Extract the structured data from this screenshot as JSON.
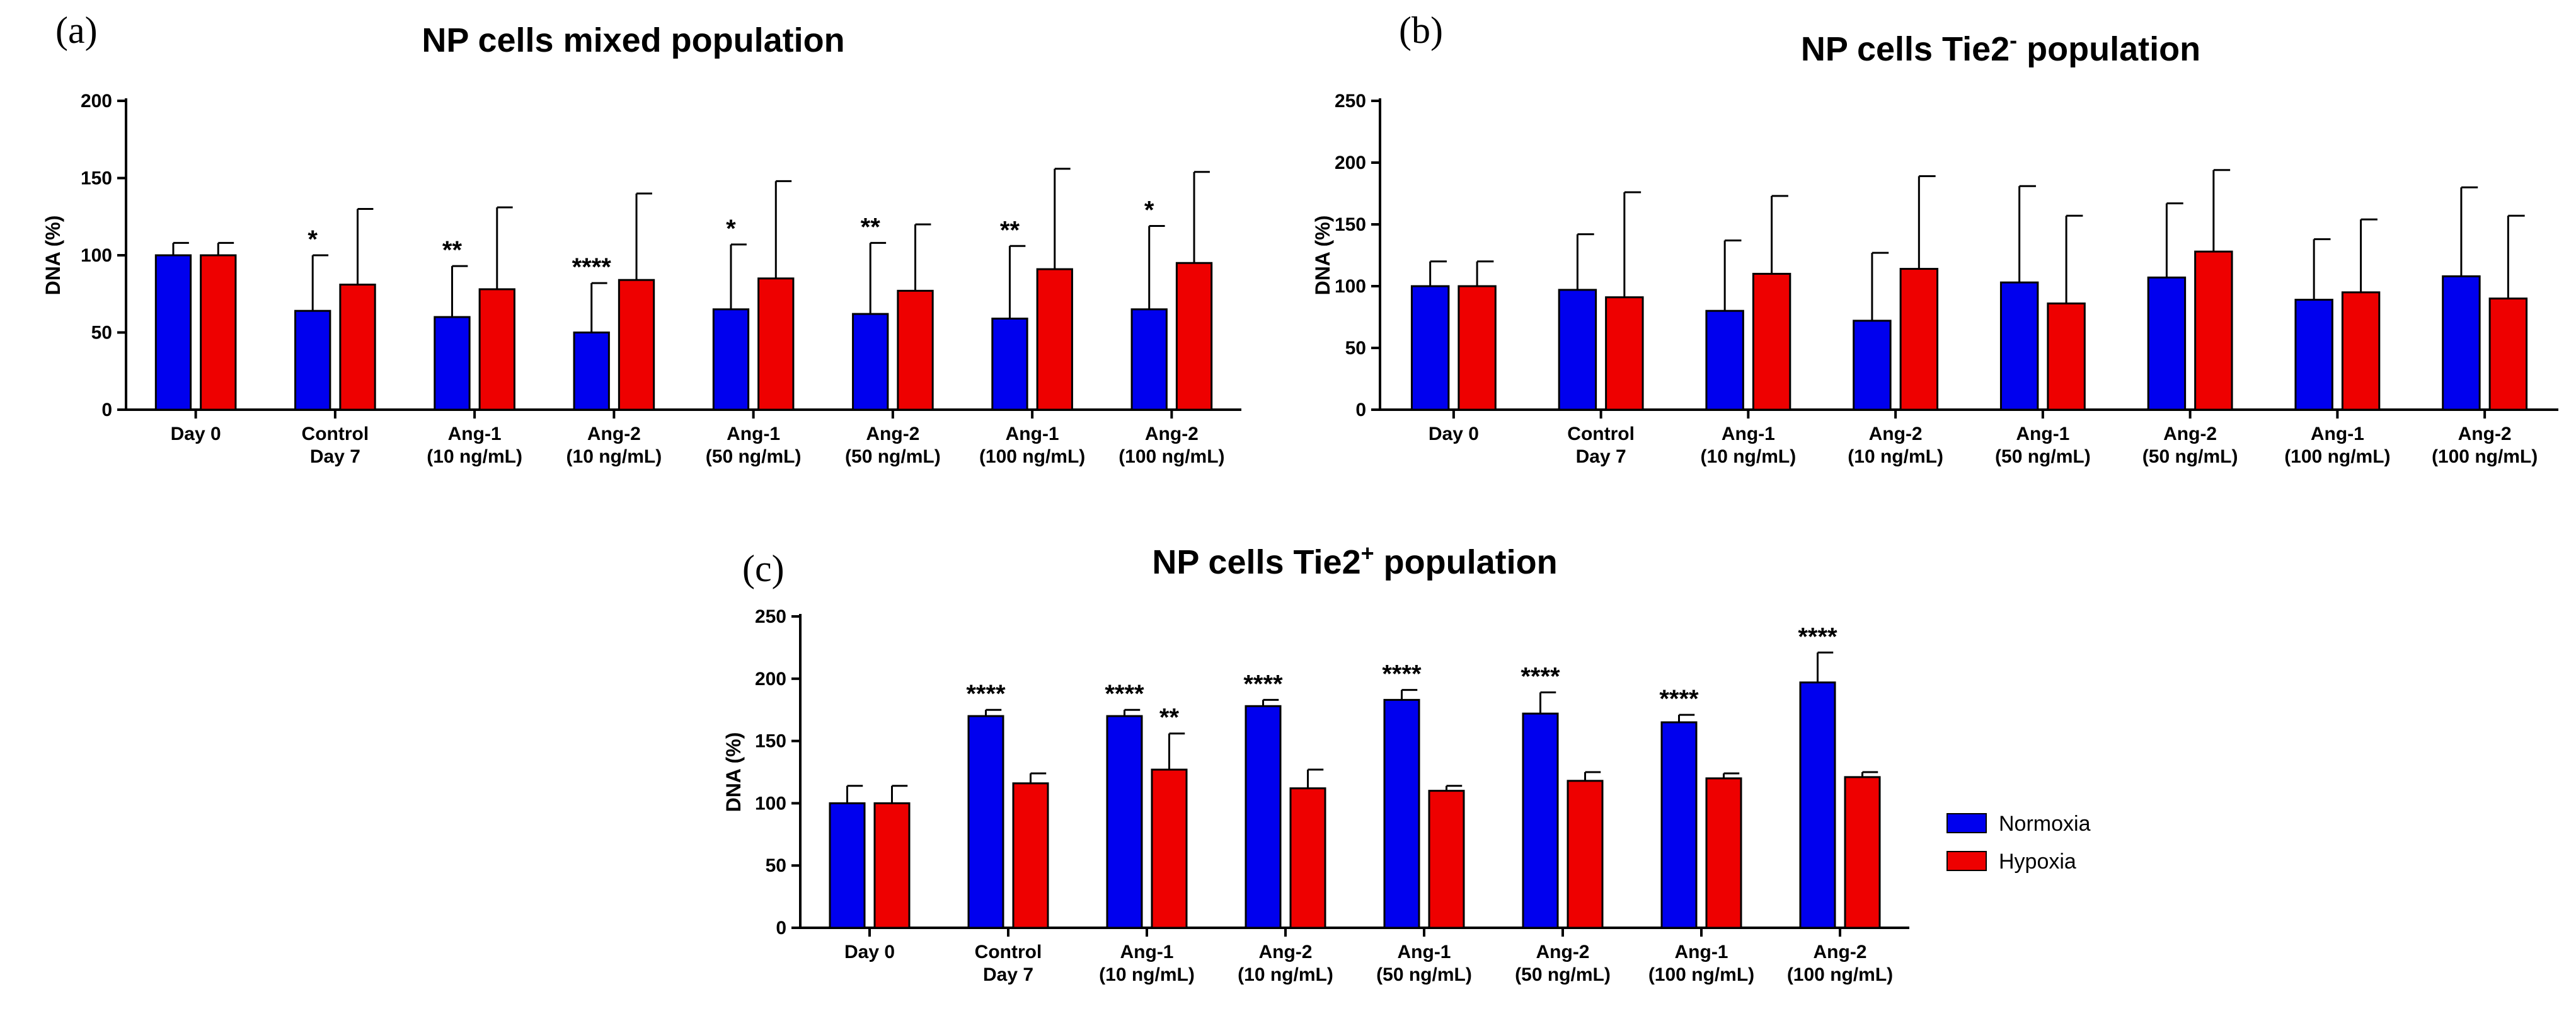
{
  "colors": {
    "normoxia": "#0000ee",
    "hypoxia": "#ee0000",
    "axis": "#000000"
  },
  "legend": {
    "normoxia": "Normoxia",
    "hypoxia": "Hypoxia"
  },
  "chart_data": [
    {
      "panel": "(a)",
      "type": "bar",
      "title": "NP cells mixed population",
      "title_superscript": "",
      "title_suffix": "",
      "ylabel": "DNA (%)",
      "xlabel": "",
      "ylim": [
        0,
        200
      ],
      "yticks": [
        0,
        50,
        100,
        150,
        200
      ],
      "categories": [
        [
          "Day 0"
        ],
        [
          "Control",
          "Day 7"
        ],
        [
          "Ang-1",
          "(10 ng/mL)"
        ],
        [
          "Ang-2",
          "(10 ng/mL)"
        ],
        [
          "Ang-1",
          "(50 ng/mL)"
        ],
        [
          "Ang-2",
          "(50 ng/mL)"
        ],
        [
          "Ang-1",
          "(100 ng/mL)"
        ],
        [
          "Ang-2",
          "(100 ng/mL)"
        ]
      ],
      "series": [
        {
          "name": "Normoxia",
          "values": [
            100,
            64,
            60,
            50,
            65,
            62,
            59,
            65
          ],
          "errors": [
            8,
            36,
            33,
            32,
            42,
            46,
            47,
            54
          ],
          "annotations": [
            "",
            "*",
            "**",
            "****",
            "*",
            "**",
            "**",
            "*"
          ]
        },
        {
          "name": "Hypoxia",
          "values": [
            100,
            81,
            78,
            84,
            85,
            77,
            91,
            95
          ],
          "errors": [
            8,
            49,
            53,
            56,
            63,
            43,
            65,
            59
          ],
          "annotations": [
            "",
            "",
            "",
            "",
            "",
            "",
            "",
            ""
          ]
        }
      ]
    },
    {
      "panel": "(b)",
      "type": "bar",
      "title": "NP cells Tie2",
      "title_superscript": "-",
      "title_suffix": " population",
      "ylabel": "DNA (%)",
      "xlabel": "",
      "ylim": [
        0,
        250
      ],
      "yticks": [
        0,
        50,
        100,
        150,
        200,
        250
      ],
      "categories": [
        [
          "Day 0"
        ],
        [
          "Control",
          "Day 7"
        ],
        [
          "Ang-1",
          "(10 ng/mL)"
        ],
        [
          "Ang-2",
          "(10 ng/mL)"
        ],
        [
          "Ang-1",
          "(50 ng/mL)"
        ],
        [
          "Ang-2",
          "(50 ng/mL)"
        ],
        [
          "Ang-1",
          "(100 ng/mL)"
        ],
        [
          "Ang-2",
          "(100 ng/mL)"
        ]
      ],
      "series": [
        {
          "name": "Normoxia",
          "values": [
            100,
            97,
            80,
            72,
            103,
            107,
            89,
            108
          ],
          "errors": [
            20,
            45,
            57,
            55,
            78,
            60,
            49,
            72
          ],
          "annotations": [
            "",
            "",
            "",
            "",
            "",
            "",
            "",
            ""
          ]
        },
        {
          "name": "Hypoxia",
          "values": [
            100,
            91,
            110,
            114,
            86,
            128,
            95,
            90
          ],
          "errors": [
            20,
            85,
            63,
            75,
            71,
            66,
            59,
            67
          ],
          "annotations": [
            "",
            "",
            "",
            "",
            "",
            "",
            "",
            ""
          ]
        }
      ]
    },
    {
      "panel": "(c)",
      "type": "bar",
      "title": "NP cells Tie2",
      "title_superscript": "+",
      "title_suffix": " population",
      "ylabel": "DNA (%)",
      "xlabel": "",
      "ylim": [
        0,
        250
      ],
      "yticks": [
        0,
        50,
        100,
        150,
        200,
        250
      ],
      "categories": [
        [
          "Day 0"
        ],
        [
          "Control",
          "Day 7"
        ],
        [
          "Ang-1",
          "(10 ng/mL)"
        ],
        [
          "Ang-2",
          "(10 ng/mL)"
        ],
        [
          "Ang-1",
          "(50 ng/mL)"
        ],
        [
          "Ang-2",
          "(50 ng/mL)"
        ],
        [
          "Ang-1",
          "(100 ng/mL)"
        ],
        [
          "Ang-2",
          "(100 ng/mL)"
        ]
      ],
      "series": [
        {
          "name": "Normoxia",
          "values": [
            100,
            170,
            170,
            178,
            183,
            172,
            165,
            197
          ],
          "errors": [
            14,
            5,
            5,
            5,
            8,
            17,
            6,
            24
          ],
          "annotations": [
            "",
            "****",
            "****",
            "****",
            "****",
            "****",
            "****",
            "****"
          ]
        },
        {
          "name": "Hypoxia",
          "values": [
            100,
            116,
            127,
            112,
            110,
            118,
            120,
            121
          ],
          "errors": [
            14,
            8,
            29,
            15,
            4,
            7,
            4,
            4
          ],
          "annotations": [
            "",
            "",
            "**",
            "",
            "",
            "",
            "",
            ""
          ]
        }
      ]
    }
  ]
}
